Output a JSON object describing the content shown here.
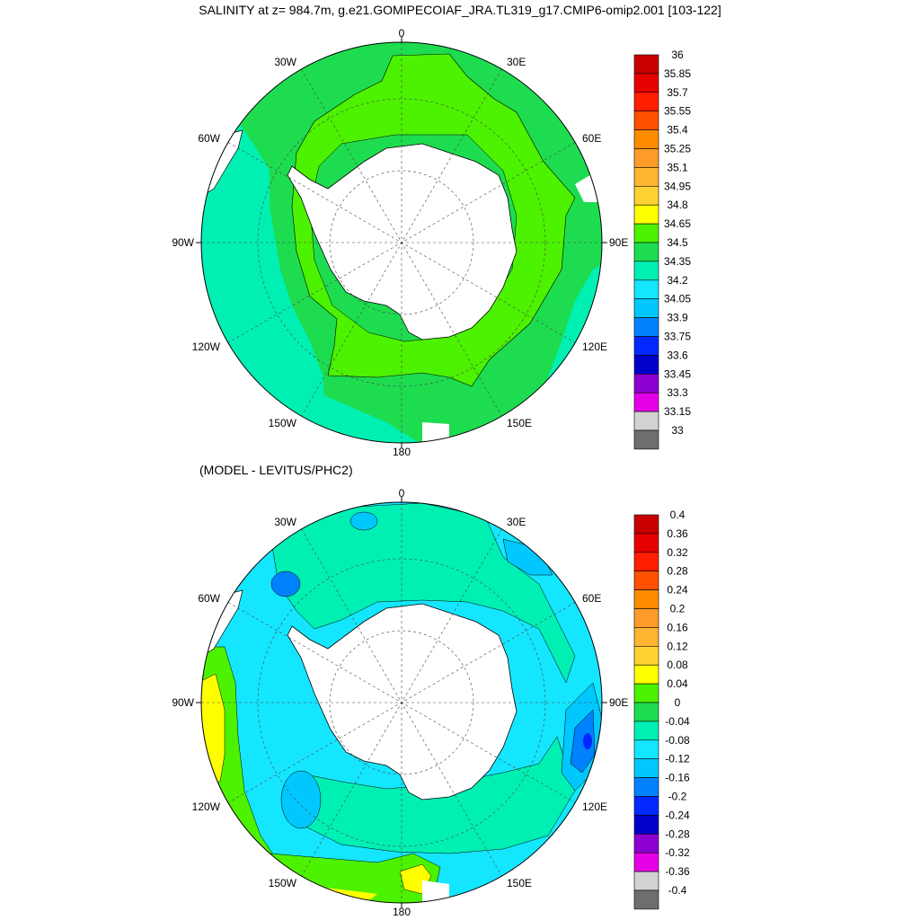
{
  "title": "SALINITY at z= 984.7m, g.e21.GOMIPECOIAF_JRA.TL319_g17.CMIP6-omip2.001 [103-122]",
  "subtitle": "(MODEL - LEVITUS/PHC2)",
  "lon_labels": {
    "top": "0",
    "bottom": "180",
    "w30": "30W",
    "e30": "30E",
    "w60": "60W",
    "e60": "60E",
    "w90": "90W",
    "e90": "90E",
    "w120": "120W",
    "e120": "120E",
    "w150": "150W",
    "e150": "150E"
  },
  "maps": [
    {
      "name": "salinity",
      "colorbar_labels": [
        "36",
        "35.85",
        "35.7",
        "35.55",
        "35.4",
        "35.25",
        "35.1",
        "34.95",
        "34.8",
        "34.65",
        "34.5",
        "34.35",
        "34.2",
        "34.05",
        "33.9",
        "33.75",
        "33.6",
        "33.45",
        "33.3",
        "33.15",
        "33"
      ],
      "colorbar_colors": [
        "#c80000",
        "#e60000",
        "#ff1e00",
        "#ff5000",
        "#ff8c00",
        "#ff9b28",
        "#ffb432",
        "#ffd232",
        "#ffff00",
        "#4cf200",
        "#1edc50",
        "#00f0b4",
        "#14e6ff",
        "#00c8ff",
        "#0082ff",
        "#0028ff",
        "#0000c8",
        "#8c00d2",
        "#e600e6",
        "#d2d2d2",
        "#6e6e6e"
      ]
    },
    {
      "name": "difference",
      "colorbar_labels": [
        "0.4",
        "0.36",
        "0.32",
        "0.28",
        "0.24",
        "0.2",
        "0.16",
        "0.12",
        "0.08",
        "0.04",
        "0",
        "-0.04",
        "-0.08",
        "-0.12",
        "-0.16",
        "-0.2",
        "-0.24",
        "-0.28",
        "-0.32",
        "-0.36",
        "-0.4"
      ],
      "colorbar_colors": [
        "#c80000",
        "#e60000",
        "#ff1e00",
        "#ff5000",
        "#ff8c00",
        "#ff9b28",
        "#ffb432",
        "#ffd232",
        "#ffff00",
        "#4cf200",
        "#1edc50",
        "#00f0b4",
        "#14e6ff",
        "#00c8ff",
        "#0082ff",
        "#0028ff",
        "#0000c8",
        "#8c00d2",
        "#e600e6",
        "#d2d2d2",
        "#6e6e6e"
      ]
    }
  ]
}
